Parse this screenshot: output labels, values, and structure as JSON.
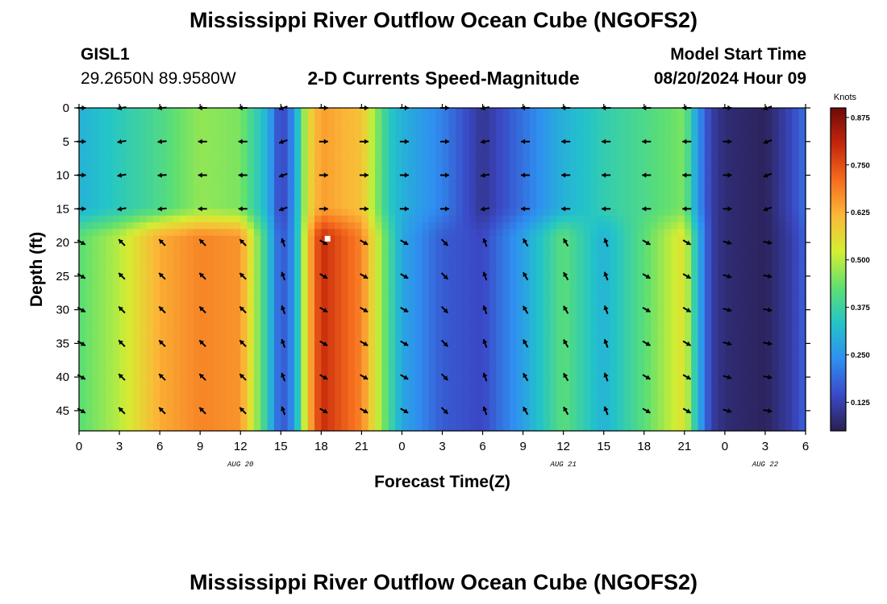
{
  "header": {
    "title": "Mississippi River Outflow Ocean Cube (NGOFS2)",
    "station": "GISL1",
    "coordinates": "29.2650N  89.9580W",
    "subtitle": "2-D Currents Speed-Magnitude",
    "model_start_label": "Model Start Time",
    "model_start_value": "08/20/2024 Hour 09"
  },
  "footer": {
    "title": "Mississippi River Outflow Ocean Cube (NGOFS2)"
  },
  "chart_data": {
    "type": "heatmap",
    "title": "2-D Currents Speed-Magnitude",
    "xlabel": "Forecast Time(Z)",
    "ylabel": "Depth (ft)",
    "x_ticks": [
      "0",
      "3",
      "6",
      "9",
      "12",
      "15",
      "18",
      "21",
      "0",
      "3",
      "6",
      "9",
      "12",
      "15",
      "18",
      "21",
      "0",
      "3",
      "6"
    ],
    "x_hours_from_aug20_00z": [
      0,
      3,
      6,
      9,
      12,
      15,
      18,
      21,
      24,
      27,
      30,
      33,
      36,
      39,
      42,
      45,
      48,
      51,
      54
    ],
    "date_labels": [
      {
        "label": "AUG 20",
        "hour": 12
      },
      {
        "label": "AUG 21",
        "hour": 36
      },
      {
        "label": "AUG 22",
        "hour": 51
      }
    ],
    "y_ticks": [
      0,
      5,
      10,
      15,
      20,
      25,
      30,
      35,
      40,
      45
    ],
    "ylim": [
      48,
      0
    ],
    "xlim": [
      0,
      54
    ],
    "colorbar": {
      "label": "Knots",
      "ticks": [
        "0.875",
        "0.750",
        "0.625",
        "0.500",
        "0.375",
        "0.250",
        "0.125"
      ],
      "tick_values": [
        0.875,
        0.75,
        0.625,
        0.5,
        0.375,
        0.25,
        0.125
      ],
      "range": [
        0.05,
        0.9
      ],
      "colors": [
        "#2a1f4f",
        "#3b49c7",
        "#2f8ff0",
        "#23c4c9",
        "#5fe070",
        "#d4ee32",
        "#fbb838",
        "#f56b1e",
        "#c4260b",
        "#6e0a08"
      ]
    },
    "depth_levels_ft": [
      0,
      5,
      10,
      15,
      20,
      25,
      30,
      35,
      40,
      45
    ],
    "speed_upper_layer_0_to_15ft": [
      {
        "hour": 0,
        "speed": 0.3
      },
      {
        "hour": 3,
        "speed": 0.35
      },
      {
        "hour": 6,
        "speed": 0.4
      },
      {
        "hour": 9,
        "speed": 0.47
      },
      {
        "hour": 12,
        "speed": 0.45
      },
      {
        "hour": 14,
        "speed": 0.3
      },
      {
        "hour": 15,
        "speed": 0.12
      },
      {
        "hour": 16,
        "speed": 0.25
      },
      {
        "hour": 17,
        "speed": 0.55
      },
      {
        "hour": 18,
        "speed": 0.65
      },
      {
        "hour": 21,
        "speed": 0.6
      },
      {
        "hour": 23,
        "speed": 0.35
      },
      {
        "hour": 24,
        "speed": 0.3
      },
      {
        "hour": 27,
        "speed": 0.22
      },
      {
        "hour": 30,
        "speed": 0.1
      },
      {
        "hour": 33,
        "speed": 0.2
      },
      {
        "hour": 36,
        "speed": 0.3
      },
      {
        "hour": 39,
        "speed": 0.36
      },
      {
        "hour": 42,
        "speed": 0.4
      },
      {
        "hour": 45,
        "speed": 0.45
      },
      {
        "hour": 46,
        "speed": 0.25
      },
      {
        "hour": 47,
        "speed": 0.12
      },
      {
        "hour": 48,
        "speed": 0.08
      },
      {
        "hour": 51,
        "speed": 0.06
      },
      {
        "hour": 53,
        "speed": 0.14
      },
      {
        "hour": 54,
        "speed": 0.2
      }
    ],
    "speed_lower_layer_20_to_48ft": [
      {
        "hour": 0,
        "speed": 0.42
      },
      {
        "hour": 3,
        "speed": 0.5
      },
      {
        "hour": 6,
        "speed": 0.63
      },
      {
        "hour": 9,
        "speed": 0.68
      },
      {
        "hour": 12,
        "speed": 0.66
      },
      {
        "hour": 14,
        "speed": 0.35
      },
      {
        "hour": 15,
        "speed": 0.15
      },
      {
        "hour": 16,
        "speed": 0.25
      },
      {
        "hour": 17,
        "speed": 0.6
      },
      {
        "hour": 18,
        "speed": 0.8
      },
      {
        "hour": 21,
        "speed": 0.68
      },
      {
        "hour": 23,
        "speed": 0.4
      },
      {
        "hour": 24,
        "speed": 0.28
      },
      {
        "hour": 27,
        "speed": 0.17
      },
      {
        "hour": 30,
        "speed": 0.14
      },
      {
        "hour": 33,
        "speed": 0.27
      },
      {
        "hour": 36,
        "speed": 0.42
      },
      {
        "hour": 39,
        "speed": 0.3
      },
      {
        "hour": 42,
        "speed": 0.42
      },
      {
        "hour": 45,
        "speed": 0.55
      },
      {
        "hour": 46,
        "speed": 0.3
      },
      {
        "hour": 47,
        "speed": 0.12
      },
      {
        "hour": 48,
        "speed": 0.08
      },
      {
        "hour": 51,
        "speed": 0.06
      },
      {
        "hour": 53,
        "speed": 0.12
      },
      {
        "hour": 54,
        "speed": 0.18
      }
    ],
    "arrow_direction_deg_from_east": {
      "upper_layer": [
        {
          "hour": 0,
          "deg": 0
        },
        {
          "hour": 3,
          "deg": 190
        },
        {
          "hour": 6,
          "deg": 185
        },
        {
          "hour": 9,
          "deg": 180
        },
        {
          "hour": 12,
          "deg": 180
        },
        {
          "hour": 15,
          "deg": 200
        },
        {
          "hour": 18,
          "deg": 0
        },
        {
          "hour": 21,
          "deg": 0
        },
        {
          "hour": 24,
          "deg": 0
        },
        {
          "hour": 27,
          "deg": 0
        },
        {
          "hour": 30,
          "deg": 190
        },
        {
          "hour": 33,
          "deg": 180
        },
        {
          "hour": 36,
          "deg": 180
        },
        {
          "hour": 39,
          "deg": 180
        },
        {
          "hour": 42,
          "deg": 180
        },
        {
          "hour": 45,
          "deg": 180
        },
        {
          "hour": 48,
          "deg": 0
        },
        {
          "hour": 51,
          "deg": 200
        }
      ],
      "lower_layer": [
        {
          "hour": 0,
          "deg": -30
        },
        {
          "hour": 3,
          "deg": 135
        },
        {
          "hour": 6,
          "deg": 135
        },
        {
          "hour": 9,
          "deg": 135
        },
        {
          "hour": 12,
          "deg": 135
        },
        {
          "hour": 15,
          "deg": 110
        },
        {
          "hour": 18,
          "deg": -30
        },
        {
          "hour": 21,
          "deg": -30
        },
        {
          "hour": 24,
          "deg": -30
        },
        {
          "hour": 27,
          "deg": -45
        },
        {
          "hour": 30,
          "deg": 110
        },
        {
          "hour": 33,
          "deg": 120
        },
        {
          "hour": 36,
          "deg": 120
        },
        {
          "hour": 39,
          "deg": 110
        },
        {
          "hour": 42,
          "deg": -30
        },
        {
          "hour": 45,
          "deg": -30
        },
        {
          "hour": 48,
          "deg": -15
        },
        {
          "hour": 51,
          "deg": -10
        }
      ]
    },
    "marker": {
      "hour": 18.5,
      "depth": 19.5
    }
  }
}
